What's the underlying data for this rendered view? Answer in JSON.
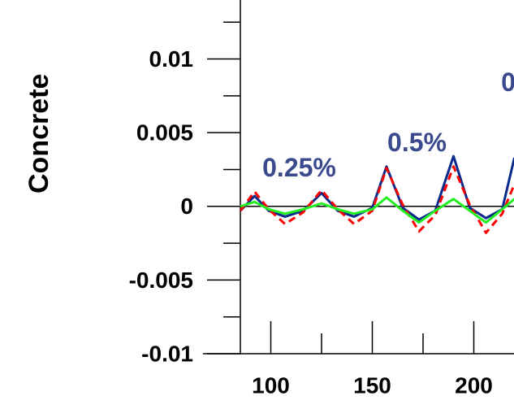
{
  "chart_data": {
    "type": "line",
    "y_label": "Concrete",
    "x": [
      85,
      92,
      99,
      107,
      116,
      125,
      133,
      141,
      150,
      157,
      165,
      173,
      181,
      190,
      198,
      206,
      214,
      220
    ],
    "series": [
      {
        "color": "#0a2a8c",
        "dash": false,
        "values": [
          -0.0003,
          0.0007,
          -0.0003,
          -0.0007,
          -0.0003,
          0.0009,
          -0.0003,
          -0.0007,
          -0.0001,
          0.0027,
          -0.0001,
          -0.0009,
          -0.0003,
          0.0034,
          -0.0001,
          -0.0008,
          -0.0002,
          0.0033
        ]
      },
      {
        "color": "#ff0000",
        "dash": true,
        "values": [
          -0.0003,
          0.001,
          -0.0002,
          -0.0012,
          -0.0004,
          0.0011,
          -0.0002,
          -0.0012,
          -0.0003,
          0.0026,
          0.0001,
          -0.0017,
          -0.0006,
          0.0027,
          0.0001,
          -0.0018,
          -0.0005,
          0.0015
        ]
      },
      {
        "color": "#22ee22",
        "dash": false,
        "values": [
          0,
          0.0003,
          -0.0002,
          -0.0005,
          -0.0002,
          0.0002,
          -0.0002,
          -0.0005,
          -0.0002,
          0.0006,
          -0.0003,
          -0.0011,
          -0.0003,
          0.0005,
          -0.0003,
          -0.0011,
          -0.0002,
          0.0005
        ]
      }
    ],
    "xlim": [
      85,
      219.8
    ],
    "ylim": [
      -0.01,
      0.014
    ],
    "xticks": [
      100,
      150,
      200
    ],
    "xminorticks": [
      125,
      175
    ],
    "yticks": [
      0.01,
      0.005,
      0,
      -0.005,
      -0.01
    ],
    "yminorticks": [
      0.0125,
      0.0075,
      0.0025,
      -0.0025,
      -0.0075
    ],
    "hline": 0,
    "annotations": [
      {
        "text": "0.25%",
        "x": 114,
        "y": 0.0025
      },
      {
        "text": "0.5%",
        "x": 172,
        "y": 0.0042
      },
      {
        "text": "0",
        "x": 217,
        "y": 0.0083
      }
    ]
  }
}
